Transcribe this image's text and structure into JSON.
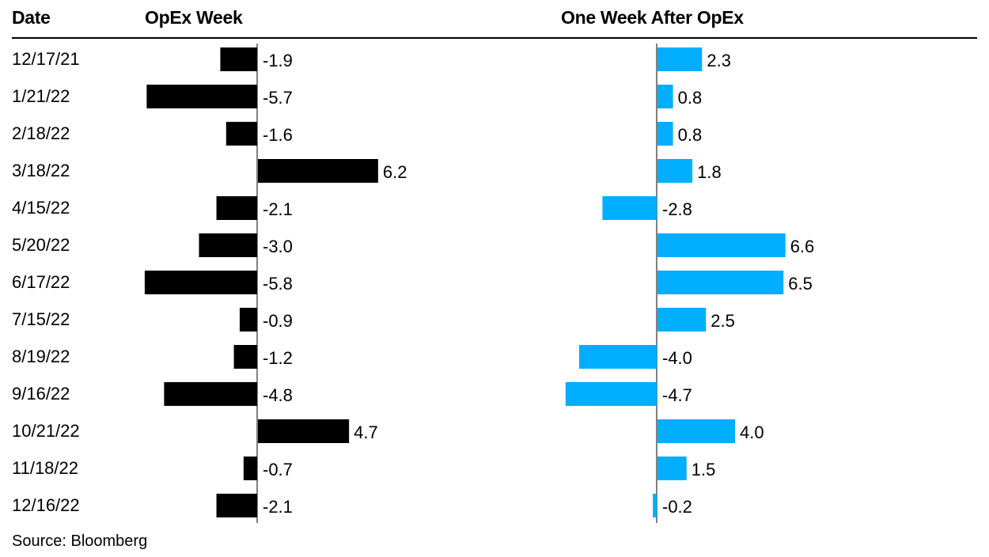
{
  "headers": {
    "date": "Date",
    "opex_week": "OpEx Week",
    "after_opex": "One Week After OpEx"
  },
  "colors": {
    "opex_week_bar": "#000000",
    "after_opex_bar": "#00AEFF",
    "text": "#000000"
  },
  "chart_data": {
    "type": "bar",
    "orientation": "horizontal",
    "categories": [
      "12/17/21",
      "1/21/22",
      "2/18/22",
      "3/18/22",
      "4/15/22",
      "5/20/22",
      "6/17/22",
      "7/15/22",
      "8/19/22",
      "9/16/22",
      "10/21/22",
      "11/18/22",
      "12/16/22"
    ],
    "series": [
      {
        "name": "OpEx Week",
        "values": [
          -1.9,
          -5.7,
          -1.6,
          6.2,
          -2.1,
          -3.0,
          -5.8,
          -0.9,
          -1.2,
          -4.8,
          4.7,
          -0.7,
          -2.1
        ]
      },
      {
        "name": "One Week After OpEx",
        "values": [
          2.3,
          0.8,
          0.8,
          1.8,
          -2.8,
          6.6,
          6.5,
          2.5,
          -4.0,
          -4.7,
          4.0,
          1.5,
          -0.2
        ]
      }
    ],
    "value_labels": {
      "OpEx Week": [
        "-1.9",
        "-5.7",
        "-1.6",
        "6.2",
        "-2.1",
        "-3.0",
        "-5.8",
        "-0.9",
        "-1.2",
        "-4.8",
        "4.7",
        "-0.7",
        "-2.1"
      ],
      "One Week After OpEx": [
        "2.3",
        "0.8",
        "0.8",
        "1.8",
        "-2.8",
        "6.6",
        "6.5",
        "2.5",
        "-4.0",
        "-4.7",
        "4.0",
        "1.5",
        "-0.2"
      ]
    }
  },
  "source": "Source: Bloomberg"
}
